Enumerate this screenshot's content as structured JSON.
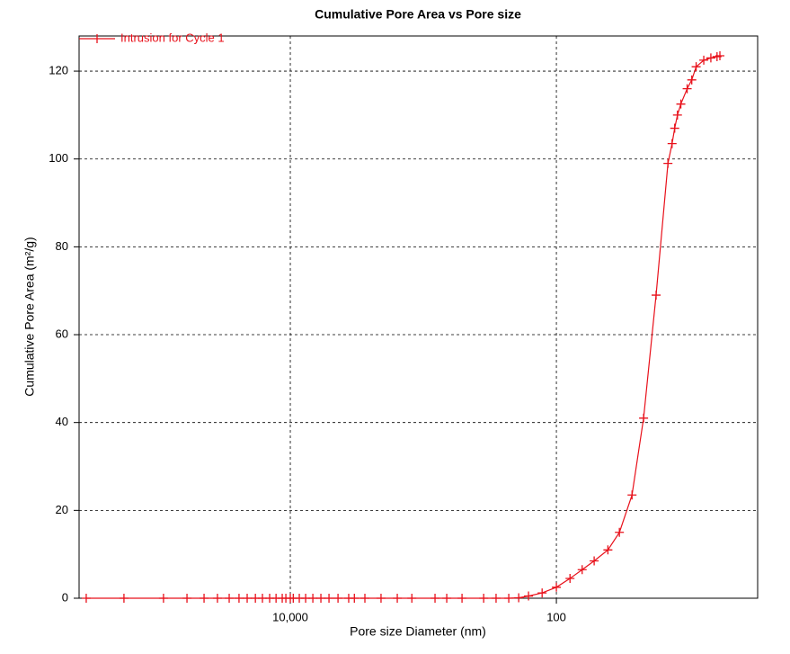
{
  "chart_data": {
    "type": "line",
    "title": "Cumulative Pore Area vs Pore size",
    "x_label": "Pore size Diameter (nm)",
    "y_label": "Cumulative Pore Area (m²/g)",
    "x_scale": "log",
    "x_reversed": true,
    "grid": true,
    "legend": "top-left",
    "xlim": [
      387000,
      3.07
    ],
    "ylim": [
      0,
      128
    ],
    "xticks": [
      {
        "value": 10000,
        "label": "10,000"
      },
      100
    ],
    "yticks": [
      0,
      20,
      40,
      60,
      80,
      100,
      120
    ],
    "series": [
      {
        "name": "Intrusion for Cycle 1",
        "color": "#e8101a",
        "x": [
          342000,
          178000,
          89800,
          59800,
          44500,
          35300,
          28800,
          24300,
          21100,
          18300,
          16200,
          14300,
          12800,
          11500,
          10800,
          10000,
          9500,
          8560,
          7670,
          6770,
          5890,
          5120,
          4380,
          3640,
          3300,
          2750,
          2080,
          1570,
          1220,
          817,
          667,
          512,
          352,
          284,
          228,
          192,
          162,
          128,
          100,
          79,
          64,
          52,
          41,
          33.6,
          27,
          22.1,
          17.8,
          14.5,
          13.5,
          12.9,
          12.3,
          11.6,
          10.4,
          9.6,
          8.9,
          7.8,
          6.9,
          6.2,
          5.9
        ],
        "values": [
          0,
          0,
          0,
          0,
          0,
          0,
          0,
          0,
          0,
          0,
          0,
          0,
          0,
          0,
          0,
          0,
          0,
          0,
          0,
          0,
          0,
          0,
          0,
          0,
          0,
          0,
          0,
          0,
          0,
          0,
          0,
          0,
          0,
          0,
          0,
          0.1,
          0.5,
          1.2,
          2.5,
          4.5,
          6.5,
          8.5,
          11,
          15,
          23.5,
          41,
          69,
          99,
          103.5,
          107,
          110,
          112.5,
          116,
          118,
          121,
          122.5,
          123,
          123.3,
          123.5
        ]
      }
    ]
  }
}
